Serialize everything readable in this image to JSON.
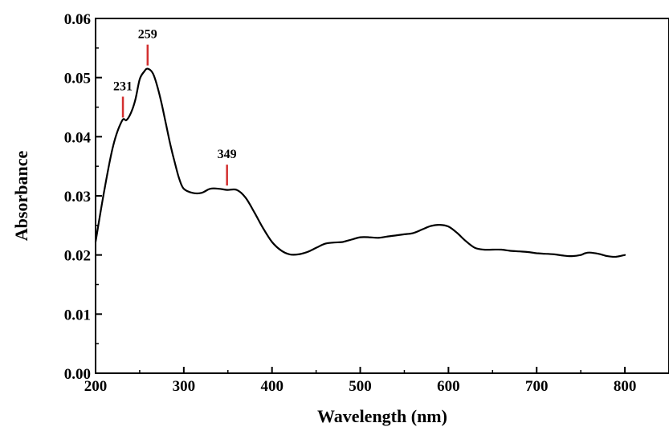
{
  "chart_data": {
    "type": "line",
    "xlabel": "Wavelength (nm)",
    "ylabel": "Absorbance",
    "xlim": [
      200,
      850
    ],
    "ylim": [
      0.0,
      0.06
    ],
    "x_ticks": [
      200,
      300,
      400,
      500,
      600,
      700,
      800
    ],
    "y_ticks": [
      0.0,
      0.01,
      0.02,
      0.03,
      0.04,
      0.05,
      0.06
    ],
    "x_tick_labels": [
      "200",
      "300",
      "400",
      "500",
      "600",
      "700",
      "800"
    ],
    "y_tick_labels": [
      "0.00",
      "0.01",
      "0.02",
      "0.03",
      "0.04",
      "0.05",
      "0.06"
    ],
    "grid": false,
    "line_color": "#000000",
    "marker_color": "#d32f2f",
    "series": [
      {
        "x": [
          200,
          210,
          220,
          230,
          235,
          240,
          245,
          250,
          255,
          259,
          265,
          270,
          275,
          280,
          285,
          290,
          295,
          300,
          310,
          320,
          330,
          340,
          349,
          360,
          370,
          380,
          390,
          400,
          410,
          420,
          430,
          440,
          450,
          460,
          470,
          480,
          490,
          500,
          510,
          520,
          530,
          540,
          550,
          560,
          570,
          580,
          590,
          600,
          610,
          620,
          630,
          640,
          650,
          660,
          670,
          680,
          690,
          700,
          710,
          720,
          730,
          740,
          750,
          755,
          760,
          770,
          780,
          790,
          800
        ],
        "y": [
          0.0222,
          0.031,
          0.0385,
          0.0427,
          0.0428,
          0.044,
          0.0462,
          0.0497,
          0.051,
          0.0515,
          0.0507,
          0.0485,
          0.0455,
          0.042,
          0.0385,
          0.0355,
          0.0328,
          0.0312,
          0.0305,
          0.0305,
          0.0312,
          0.0312,
          0.031,
          0.031,
          0.0297,
          0.0272,
          0.0245,
          0.0222,
          0.0208,
          0.0201,
          0.0201,
          0.0205,
          0.0212,
          0.0219,
          0.0221,
          0.0222,
          0.0226,
          0.023,
          0.023,
          0.0229,
          0.0231,
          0.0233,
          0.0235,
          0.0237,
          0.0243,
          0.0249,
          0.0251,
          0.0248,
          0.0237,
          0.0223,
          0.0212,
          0.0209,
          0.0209,
          0.0209,
          0.0207,
          0.0206,
          0.0205,
          0.0203,
          0.0202,
          0.0201,
          0.0199,
          0.0198,
          0.02,
          0.0203,
          0.0204,
          0.0202,
          0.0198,
          0.0197,
          0.02
        ]
      }
    ],
    "annotations": [
      {
        "label": "231",
        "x": 231,
        "y": 0.0427
      },
      {
        "label": "259",
        "x": 259,
        "y": 0.0515
      },
      {
        "label": "349",
        "x": 349,
        "y": 0.0312
      }
    ]
  }
}
